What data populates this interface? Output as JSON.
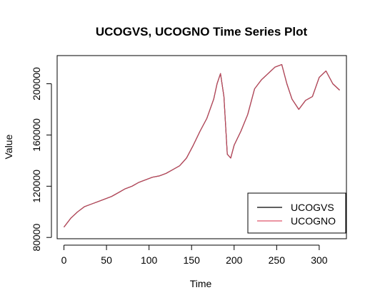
{
  "chart_data": {
    "type": "line",
    "title": "UCOGVS, UCOGNO Time Series Plot",
    "xlabel": "Time",
    "ylabel": "Value",
    "xlim": [
      -8,
      332
    ],
    "ylim": [
      79000,
      222000
    ],
    "x_ticks": [
      0,
      50,
      100,
      150,
      200,
      250,
      300
    ],
    "x_tick_labels": [
      "0",
      "50",
      "100",
      "150",
      "200",
      "250",
      "300"
    ],
    "y_ticks": [
      80000,
      120000,
      160000,
      200000
    ],
    "y_tick_labels": [
      "80000",
      "120000",
      "160000",
      "200000"
    ],
    "grid": false,
    "legend_position": "bottom-right",
    "x": [
      0,
      8,
      16,
      24,
      32,
      40,
      48,
      56,
      64,
      72,
      80,
      88,
      96,
      104,
      112,
      120,
      128,
      136,
      144,
      152,
      160,
      168,
      176,
      180,
      184,
      188,
      192,
      196,
      200,
      208,
      216,
      224,
      232,
      240,
      248,
      256,
      262,
      268,
      276,
      284,
      292,
      300,
      308,
      316,
      324
    ],
    "series": [
      {
        "name": "UCOGVS",
        "color": "#000000",
        "values": [
          88000,
          95000,
          100000,
          104000,
          106000,
          108000,
          110000,
          112000,
          115000,
          118000,
          120000,
          123000,
          125000,
          127000,
          128000,
          130000,
          133000,
          136000,
          142000,
          152000,
          163000,
          173000,
          188000,
          200000,
          208000,
          190000,
          145000,
          142000,
          152000,
          163000,
          176000,
          196000,
          203000,
          208000,
          213000,
          215000,
          200000,
          188000,
          180000,
          187000,
          190000,
          205000,
          210000,
          200000,
          195000
        ]
      },
      {
        "name": "UCOGNO",
        "color": "#df536b",
        "values": [
          88000,
          95000,
          100000,
          104000,
          106000,
          108000,
          110000,
          112000,
          115000,
          118000,
          120000,
          123000,
          125000,
          127000,
          128000,
          130000,
          133000,
          136000,
          142000,
          152000,
          163000,
          173000,
          188000,
          200000,
          208000,
          190000,
          145000,
          142000,
          152000,
          163000,
          176000,
          196000,
          203000,
          208000,
          213000,
          215000,
          200000,
          188000,
          180000,
          187000,
          190000,
          205000,
          210000,
          200000,
          195000
        ]
      }
    ]
  }
}
